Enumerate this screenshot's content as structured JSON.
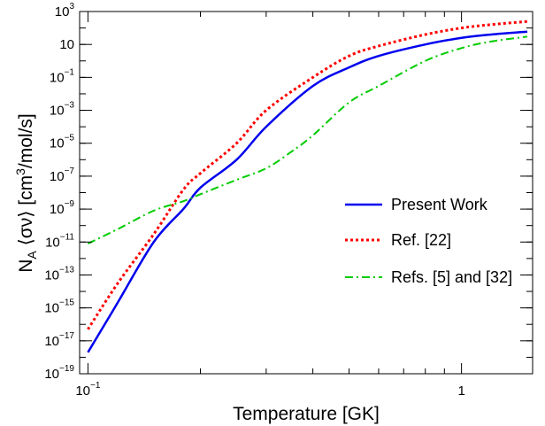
{
  "chart_data": {
    "type": "line",
    "title": "",
    "xlabel": "Temperature [GK]",
    "ylabel_parts": [
      "N",
      "A",
      " ⟨σν⟩ [cm",
      "3",
      "/mol/s]"
    ],
    "x_scale": "log",
    "y_scale": "log",
    "xlim": [
      0.095,
      1.55
    ],
    "ylim": [
      1e-19,
      1000
    ],
    "x_ticks": [
      {
        "value": 0.1,
        "base": "10",
        "exp": "−1"
      },
      {
        "value": 1,
        "base": "1",
        "exp": ""
      }
    ],
    "y_ticks": [
      {
        "value": 1e-19,
        "base": "10",
        "exp": "−19"
      },
      {
        "value": 1e-17,
        "base": "10",
        "exp": "−17"
      },
      {
        "value": 1e-15,
        "base": "10",
        "exp": "−15"
      },
      {
        "value": 1e-13,
        "base": "10",
        "exp": "−13"
      },
      {
        "value": 1e-11,
        "base": "10",
        "exp": "−11"
      },
      {
        "value": 1e-09,
        "base": "10",
        "exp": "−9"
      },
      {
        "value": 1e-07,
        "base": "10",
        "exp": "−7"
      },
      {
        "value": 1e-05,
        "base": "10",
        "exp": "−5"
      },
      {
        "value": 0.001,
        "base": "10",
        "exp": "−3"
      },
      {
        "value": 0.1,
        "base": "10",
        "exp": "−1"
      },
      {
        "value": 10,
        "base": "10",
        "exp": ""
      },
      {
        "value": 1000,
        "base": "10",
        "exp": "3"
      }
    ],
    "legend_position": "center-right",
    "series": [
      {
        "name": "Present Work",
        "color": "#0000ee",
        "dash": "solid",
        "x": [
          0.1,
          0.12,
          0.15,
          0.18,
          0.2,
          0.25,
          0.3,
          0.4,
          0.5,
          0.6,
          0.8,
          1.0,
          1.2,
          1.5
        ],
        "y": [
          2e-18,
          2e-15,
          1e-11,
          1e-09,
          2e-08,
          1e-06,
          0.0001,
          0.03,
          0.4,
          2,
          10,
          25,
          40,
          60
        ]
      },
      {
        "name": "Ref. [22]",
        "color": "#ff0000",
        "dash": "dot",
        "x": [
          0.1,
          0.12,
          0.15,
          0.18,
          0.2,
          0.25,
          0.3,
          0.4,
          0.5,
          0.6,
          0.8,
          1.0,
          1.2,
          1.5
        ],
        "y": [
          5e-17,
          3e-14,
          3e-11,
          1.5e-08,
          1.5e-07,
          1e-05,
          0.001,
          0.1,
          2,
          8,
          40,
          100,
          160,
          250
        ]
      },
      {
        "name": "Refs. [5] and [32]",
        "color": "#00cc00",
        "dash": "dashdot",
        "x": [
          0.1,
          0.12,
          0.15,
          0.18,
          0.2,
          0.25,
          0.3,
          0.35,
          0.4,
          0.5,
          0.6,
          0.8,
          1.0,
          1.2,
          1.5
        ],
        "y": [
          8e-12,
          6e-11,
          8e-10,
          3e-09,
          8e-09,
          6e-08,
          3e-07,
          3e-06,
          3e-05,
          0.003,
          0.03,
          1,
          6,
          15,
          30
        ]
      }
    ]
  }
}
